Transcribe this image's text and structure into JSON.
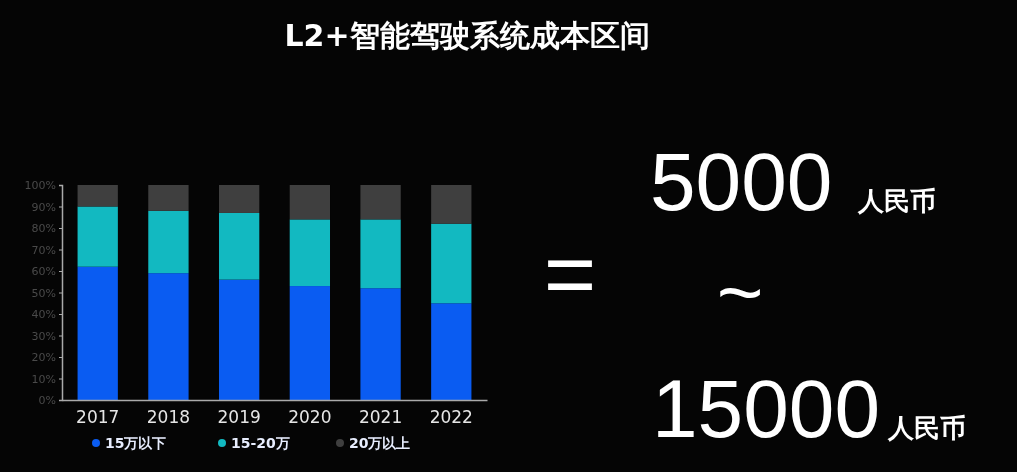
{
  "chart_data": {
    "type": "bar",
    "title": "L2+智能驾驶系统成本区间",
    "categories": [
      "2017",
      "2018",
      "2019",
      "2020",
      "2021",
      "2022"
    ],
    "stacked": true,
    "series": [
      {
        "name": "15万以下",
        "color": "#0a5cf2",
        "values": [
          62,
          59,
          56,
          53,
          52,
          45
        ]
      },
      {
        "name": "15-20万",
        "color": "#12b9c1",
        "values": [
          28,
          29,
          31,
          31,
          32,
          37
        ]
      },
      {
        "name": "20万以上",
        "color": "#3f3f3f",
        "values": [
          10,
          12,
          13,
          16,
          16,
          18
        ]
      }
    ],
    "ylim": [
      0,
      100
    ],
    "yticks": [
      {
        "value": 0,
        "label": "0%"
      },
      {
        "value": 10,
        "label": "10%"
      },
      {
        "value": 20,
        "label": "20%"
      },
      {
        "value": 30,
        "label": "30%"
      },
      {
        "value": 40,
        "label": "40%"
      },
      {
        "value": 50,
        "label": "50%"
      },
      {
        "value": 60,
        "label": "60%"
      },
      {
        "value": 70,
        "label": "70%"
      },
      {
        "value": 80,
        "label": "80%"
      },
      {
        "value": 90,
        "label": "90%"
      },
      {
        "value": 100,
        "label": "100%"
      }
    ],
    "legend": "bottom",
    "annotations": [
      "=",
      "5000",
      "人民币",
      "~",
      "15000",
      "人民币"
    ]
  }
}
